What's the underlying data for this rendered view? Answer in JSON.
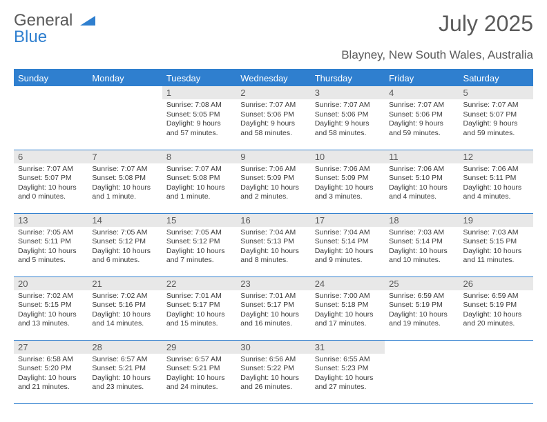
{
  "brand": {
    "general": "General",
    "blue": "Blue"
  },
  "title": "July 2025",
  "subtitle": "Blayney, New South Wales, Australia",
  "colors": {
    "accent": "#2f7fcf",
    "header_text": "#ffffff",
    "daynum_bg": "#e8e8e8",
    "text_gray": "#5a5a5a",
    "body_text": "#3a3a3a",
    "background": "#ffffff"
  },
  "days_of_week": [
    "Sunday",
    "Monday",
    "Tuesday",
    "Wednesday",
    "Thursday",
    "Friday",
    "Saturday"
  ],
  "weeks": [
    [
      {
        "n": "",
        "sr": "",
        "ss": "",
        "dl": ""
      },
      {
        "n": "",
        "sr": "",
        "ss": "",
        "dl": ""
      },
      {
        "n": "1",
        "sr": "Sunrise: 7:08 AM",
        "ss": "Sunset: 5:05 PM",
        "dl": "Daylight: 9 hours and 57 minutes."
      },
      {
        "n": "2",
        "sr": "Sunrise: 7:07 AM",
        "ss": "Sunset: 5:06 PM",
        "dl": "Daylight: 9 hours and 58 minutes."
      },
      {
        "n": "3",
        "sr": "Sunrise: 7:07 AM",
        "ss": "Sunset: 5:06 PM",
        "dl": "Daylight: 9 hours and 58 minutes."
      },
      {
        "n": "4",
        "sr": "Sunrise: 7:07 AM",
        "ss": "Sunset: 5:06 PM",
        "dl": "Daylight: 9 hours and 59 minutes."
      },
      {
        "n": "5",
        "sr": "Sunrise: 7:07 AM",
        "ss": "Sunset: 5:07 PM",
        "dl": "Daylight: 9 hours and 59 minutes."
      }
    ],
    [
      {
        "n": "6",
        "sr": "Sunrise: 7:07 AM",
        "ss": "Sunset: 5:07 PM",
        "dl": "Daylight: 10 hours and 0 minutes."
      },
      {
        "n": "7",
        "sr": "Sunrise: 7:07 AM",
        "ss": "Sunset: 5:08 PM",
        "dl": "Daylight: 10 hours and 1 minute."
      },
      {
        "n": "8",
        "sr": "Sunrise: 7:07 AM",
        "ss": "Sunset: 5:08 PM",
        "dl": "Daylight: 10 hours and 1 minute."
      },
      {
        "n": "9",
        "sr": "Sunrise: 7:06 AM",
        "ss": "Sunset: 5:09 PM",
        "dl": "Daylight: 10 hours and 2 minutes."
      },
      {
        "n": "10",
        "sr": "Sunrise: 7:06 AM",
        "ss": "Sunset: 5:09 PM",
        "dl": "Daylight: 10 hours and 3 minutes."
      },
      {
        "n": "11",
        "sr": "Sunrise: 7:06 AM",
        "ss": "Sunset: 5:10 PM",
        "dl": "Daylight: 10 hours and 4 minutes."
      },
      {
        "n": "12",
        "sr": "Sunrise: 7:06 AM",
        "ss": "Sunset: 5:11 PM",
        "dl": "Daylight: 10 hours and 4 minutes."
      }
    ],
    [
      {
        "n": "13",
        "sr": "Sunrise: 7:05 AM",
        "ss": "Sunset: 5:11 PM",
        "dl": "Daylight: 10 hours and 5 minutes."
      },
      {
        "n": "14",
        "sr": "Sunrise: 7:05 AM",
        "ss": "Sunset: 5:12 PM",
        "dl": "Daylight: 10 hours and 6 minutes."
      },
      {
        "n": "15",
        "sr": "Sunrise: 7:05 AM",
        "ss": "Sunset: 5:12 PM",
        "dl": "Daylight: 10 hours and 7 minutes."
      },
      {
        "n": "16",
        "sr": "Sunrise: 7:04 AM",
        "ss": "Sunset: 5:13 PM",
        "dl": "Daylight: 10 hours and 8 minutes."
      },
      {
        "n": "17",
        "sr": "Sunrise: 7:04 AM",
        "ss": "Sunset: 5:14 PM",
        "dl": "Daylight: 10 hours and 9 minutes."
      },
      {
        "n": "18",
        "sr": "Sunrise: 7:03 AM",
        "ss": "Sunset: 5:14 PM",
        "dl": "Daylight: 10 hours and 10 minutes."
      },
      {
        "n": "19",
        "sr": "Sunrise: 7:03 AM",
        "ss": "Sunset: 5:15 PM",
        "dl": "Daylight: 10 hours and 11 minutes."
      }
    ],
    [
      {
        "n": "20",
        "sr": "Sunrise: 7:02 AM",
        "ss": "Sunset: 5:15 PM",
        "dl": "Daylight: 10 hours and 13 minutes."
      },
      {
        "n": "21",
        "sr": "Sunrise: 7:02 AM",
        "ss": "Sunset: 5:16 PM",
        "dl": "Daylight: 10 hours and 14 minutes."
      },
      {
        "n": "22",
        "sr": "Sunrise: 7:01 AM",
        "ss": "Sunset: 5:17 PM",
        "dl": "Daylight: 10 hours and 15 minutes."
      },
      {
        "n": "23",
        "sr": "Sunrise: 7:01 AM",
        "ss": "Sunset: 5:17 PM",
        "dl": "Daylight: 10 hours and 16 minutes."
      },
      {
        "n": "24",
        "sr": "Sunrise: 7:00 AM",
        "ss": "Sunset: 5:18 PM",
        "dl": "Daylight: 10 hours and 17 minutes."
      },
      {
        "n": "25",
        "sr": "Sunrise: 6:59 AM",
        "ss": "Sunset: 5:19 PM",
        "dl": "Daylight: 10 hours and 19 minutes."
      },
      {
        "n": "26",
        "sr": "Sunrise: 6:59 AM",
        "ss": "Sunset: 5:19 PM",
        "dl": "Daylight: 10 hours and 20 minutes."
      }
    ],
    [
      {
        "n": "27",
        "sr": "Sunrise: 6:58 AM",
        "ss": "Sunset: 5:20 PM",
        "dl": "Daylight: 10 hours and 21 minutes."
      },
      {
        "n": "28",
        "sr": "Sunrise: 6:57 AM",
        "ss": "Sunset: 5:21 PM",
        "dl": "Daylight: 10 hours and 23 minutes."
      },
      {
        "n": "29",
        "sr": "Sunrise: 6:57 AM",
        "ss": "Sunset: 5:21 PM",
        "dl": "Daylight: 10 hours and 24 minutes."
      },
      {
        "n": "30",
        "sr": "Sunrise: 6:56 AM",
        "ss": "Sunset: 5:22 PM",
        "dl": "Daylight: 10 hours and 26 minutes."
      },
      {
        "n": "31",
        "sr": "Sunrise: 6:55 AM",
        "ss": "Sunset: 5:23 PM",
        "dl": "Daylight: 10 hours and 27 minutes."
      },
      {
        "n": "",
        "sr": "",
        "ss": "",
        "dl": ""
      },
      {
        "n": "",
        "sr": "",
        "ss": "",
        "dl": ""
      }
    ]
  ]
}
